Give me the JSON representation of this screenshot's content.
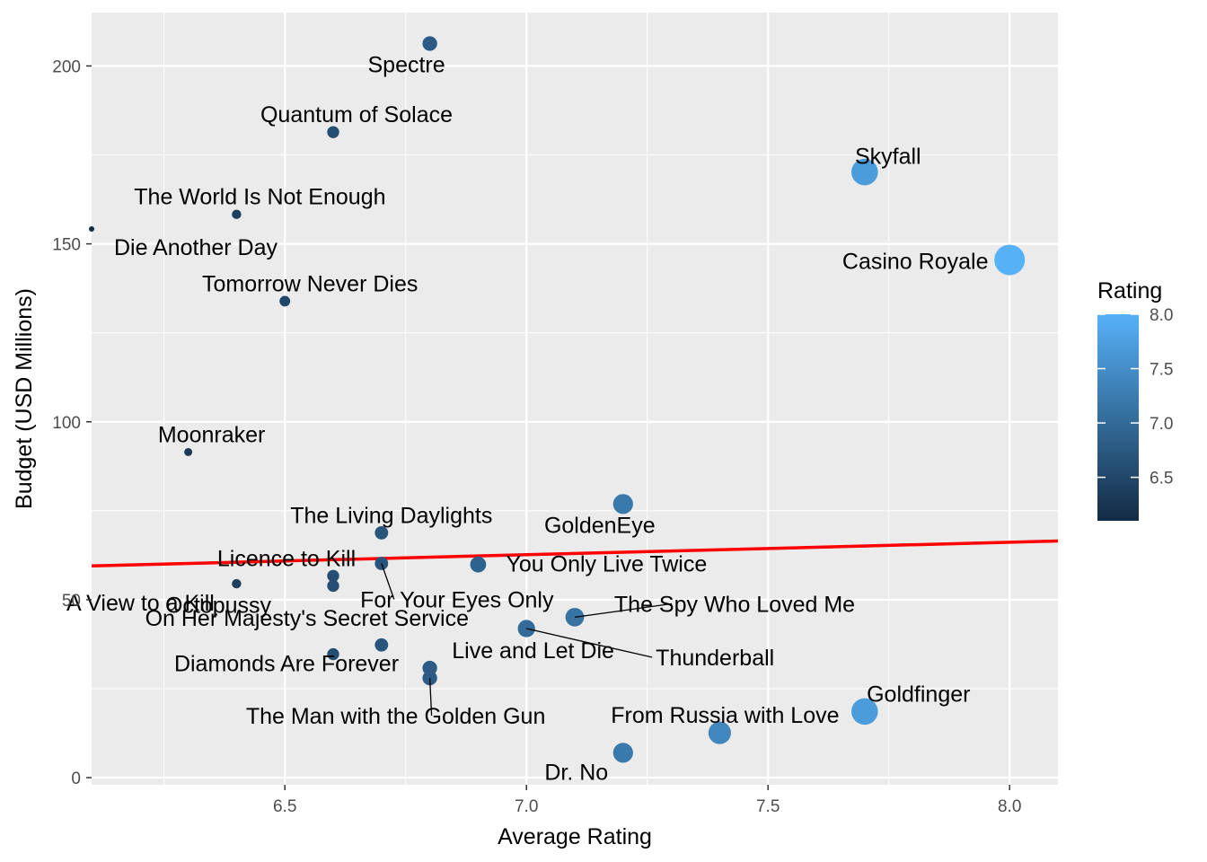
{
  "chart_data": {
    "type": "scatter",
    "title": "",
    "xlabel": "Average Rating",
    "ylabel": "Budget (USD Millions)",
    "xlim": [
      6.1,
      8.1
    ],
    "ylim": [
      -2,
      215
    ],
    "x_ticks": [
      6.5,
      7.0,
      7.5,
      8.0
    ],
    "x_tick_labels": [
      "6.5",
      "7.0",
      "7.5",
      "8.0"
    ],
    "y_ticks": [
      0,
      50,
      100,
      150,
      200
    ],
    "y_tick_labels": [
      "0",
      "50",
      "100",
      "150",
      "200"
    ],
    "grid": true,
    "background": "#ebebeb",
    "legend": {
      "title": "Rating",
      "placement": "right",
      "min": 6.1,
      "max": 8.0,
      "ticks": [
        6.5,
        7.0,
        7.5,
        8.0
      ],
      "tick_labels": [
        "6.5",
        "7.0",
        "7.5",
        "8.0"
      ],
      "low_color": "#132b43",
      "high_color": "#56b1f7"
    },
    "trend_line": {
      "color": "#ff0000",
      "x": [
        6.1,
        8.1
      ],
      "y": [
        59.5,
        66.5
      ]
    },
    "points": [
      {
        "label": "Dr. No",
        "x": 7.2,
        "y": 7
      },
      {
        "label": "From Russia with Love",
        "x": 7.4,
        "y": 12.6
      },
      {
        "label": "Goldfinger",
        "x": 7.7,
        "y": 18.6
      },
      {
        "label": "Thunderball",
        "x": 7.0,
        "y": 41.9
      },
      {
        "label": "You Only Live Twice",
        "x": 6.9,
        "y": 59.9
      },
      {
        "label": "On Her Majesty's Secret Service",
        "x": 6.7,
        "y": 37.3
      },
      {
        "label": "Diamonds Are Forever",
        "x": 6.6,
        "y": 34.7
      },
      {
        "label": "Live and Let Die",
        "x": 6.8,
        "y": 30.8
      },
      {
        "label": "The Man with the Golden Gun",
        "x": 6.8,
        "y": 28
      },
      {
        "label": "The Spy Who Loved Me",
        "x": 7.1,
        "y": 45.1
      },
      {
        "label": "Moonraker",
        "x": 6.3,
        "y": 91.5
      },
      {
        "label": "For Your Eyes Only",
        "x": 6.7,
        "y": 60.2
      },
      {
        "label": "Octopussy",
        "x": 6.6,
        "y": 53.9
      },
      {
        "label": "A View to a Kill",
        "x": 6.4,
        "y": 54.5
      },
      {
        "label": "The Living Daylights",
        "x": 6.7,
        "y": 68.8
      },
      {
        "label": "Licence to Kill",
        "x": 6.6,
        "y": 56.7
      },
      {
        "label": "GoldenEye",
        "x": 7.2,
        "y": 76.9
      },
      {
        "label": "Tomorrow Never Dies",
        "x": 6.5,
        "y": 133.9
      },
      {
        "label": "The World Is Not Enough",
        "x": 6.4,
        "y": 158.3
      },
      {
        "label": "Die Another Day",
        "x": 6.1,
        "y": 154.2
      },
      {
        "label": "Casino Royale",
        "x": 8.0,
        "y": 145.5
      },
      {
        "label": "Quantum of Solace",
        "x": 6.6,
        "y": 181.4
      },
      {
        "label": "Skyfall",
        "x": 7.7,
        "y": 170.2
      },
      {
        "label": "Spectre",
        "x": 6.8,
        "y": 206.3
      }
    ]
  }
}
